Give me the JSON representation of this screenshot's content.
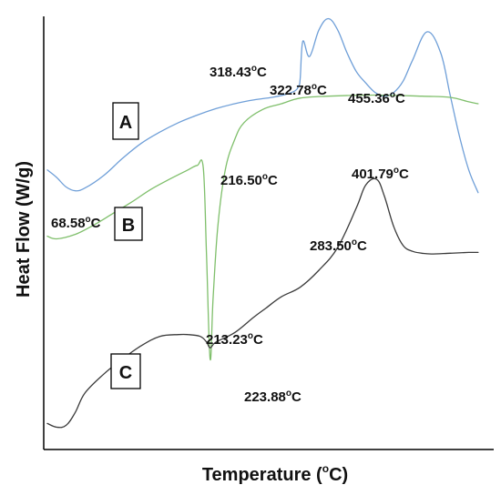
{
  "chart_data": {
    "type": "line",
    "xlabel": "Temperature (",
    "xlabel_sup": "o",
    "xlabel_suffix": "C)",
    "ylabel": "Heat Flow (W/g)",
    "grid": false,
    "series": [
      {
        "name": "A",
        "color": "#6f9fd8",
        "x": [
          50,
          60,
          70,
          80,
          90,
          110,
          130,
          150,
          170,
          190,
          210,
          230,
          250,
          270,
          290,
          305,
          315,
          318.43,
          320,
          322.78,
          330,
          340,
          350,
          360,
          370,
          380,
          390,
          400,
          410,
          420,
          430,
          440,
          455.36,
          470,
          480,
          490,
          500,
          510
        ],
        "y": [
          1.3,
          1.1,
          0.85,
          0.75,
          0.82,
          1.15,
          1.6,
          2.0,
          2.3,
          2.55,
          2.75,
          2.92,
          3.05,
          3.15,
          3.22,
          3.3,
          3.4,
          3.52,
          3.7,
          4.7,
          4.3,
          5.0,
          5.3,
          5.0,
          4.4,
          3.9,
          3.6,
          3.35,
          3.25,
          3.35,
          3.65,
          4.2,
          4.95,
          4.4,
          3.3,
          2.2,
          1.3,
          0.7
        ]
      },
      {
        "name": "B",
        "color": "#7fbf6b",
        "x": [
          50,
          60,
          80,
          100,
          120,
          140,
          160,
          180,
          200,
          210,
          216.5,
          220,
          223.88,
          227,
          232,
          240,
          250,
          260,
          280,
          300,
          320,
          350,
          400,
          450,
          480,
          500,
          510
        ],
        "y": [
          -0.45,
          -0.52,
          -0.4,
          -0.15,
          0.15,
          0.45,
          0.78,
          1.05,
          1.3,
          1.42,
          1.35,
          -1.0,
          -3.7,
          -2.1,
          -0.2,
          1.3,
          2.1,
          2.55,
          2.9,
          3.05,
          3.2,
          3.25,
          3.28,
          3.25,
          3.22,
          3.1,
          3.05
        ]
      },
      {
        "name": "C",
        "color": "#3a3a3a",
        "x": [
          50,
          60,
          70,
          80,
          90,
          110,
          130,
          150,
          170,
          190,
          200,
          213.23,
          220,
          223.88,
          230,
          250,
          270,
          283.5,
          300,
          320,
          340,
          360,
          380,
          390,
          401.79,
          410,
          420,
          430,
          440,
          450,
          460,
          480,
          500,
          510
        ],
        "y": [
          -5.4,
          -5.5,
          -5.45,
          -5.1,
          -4.6,
          -4.1,
          -3.7,
          -3.35,
          -3.1,
          -3.05,
          -3.05,
          -3.1,
          -3.25,
          -3.4,
          -3.25,
          -3.0,
          -2.6,
          -2.35,
          -2.05,
          -1.8,
          -1.35,
          -0.75,
          0.3,
          0.9,
          1.05,
          0.6,
          -0.2,
          -0.7,
          -0.85,
          -0.9,
          -0.92,
          -0.9,
          -0.88,
          -0.88
        ]
      }
    ],
    "annotations": [
      {
        "text": "318.43",
        "unit": "C"
      },
      {
        "text": "322.78",
        "unit": "C"
      },
      {
        "text": "455.36",
        "unit": "C"
      },
      {
        "text": "68.58",
        "unit": "C"
      },
      {
        "text": "216.50",
        "unit": "C"
      },
      {
        "text": "401.79",
        "unit": "C"
      },
      {
        "text": "283.50",
        "unit": "C"
      },
      {
        "text": "213.23",
        "unit": "C"
      },
      {
        "text": "223.88",
        "unit": "C"
      }
    ],
    "degree_sup": "o",
    "xlim": [
      50,
      515
    ],
    "ylim": [
      -5.8,
      5.6
    ]
  }
}
